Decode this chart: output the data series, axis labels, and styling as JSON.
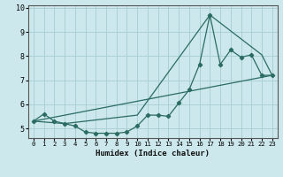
{
  "xlabel": "Humidex (Indice chaleur)",
  "xlim": [
    -0.5,
    23.5
  ],
  "ylim": [
    4.6,
    10.1
  ],
  "yticks": [
    5,
    6,
    7,
    8,
    9,
    10
  ],
  "xticks": [
    0,
    1,
    2,
    3,
    4,
    5,
    6,
    7,
    8,
    9,
    10,
    11,
    12,
    13,
    14,
    15,
    16,
    17,
    18,
    19,
    20,
    21,
    22,
    23
  ],
  "bg_color": "#cce8ec",
  "grid_color": "#aad0d6",
  "line_color": "#2a6b62",
  "line1_x": [
    0,
    1,
    2,
    3,
    4,
    5,
    6,
    7,
    8,
    9,
    10,
    11,
    12,
    13,
    14,
    15,
    16,
    17,
    18,
    19,
    20,
    21,
    22,
    23
  ],
  "line1_y": [
    5.3,
    5.6,
    5.3,
    5.2,
    5.1,
    4.85,
    4.8,
    4.8,
    4.8,
    4.85,
    5.1,
    5.55,
    5.55,
    5.5,
    6.05,
    6.6,
    7.65,
    9.7,
    7.65,
    8.25,
    7.95,
    8.05,
    7.2,
    7.2
  ],
  "line2_x": [
    0,
    23
  ],
  "line2_y": [
    5.3,
    7.2
  ],
  "line3_x": [
    0,
    3,
    10,
    17,
    22,
    23
  ],
  "line3_y": [
    5.3,
    5.2,
    5.55,
    9.7,
    8.05,
    7.2
  ]
}
